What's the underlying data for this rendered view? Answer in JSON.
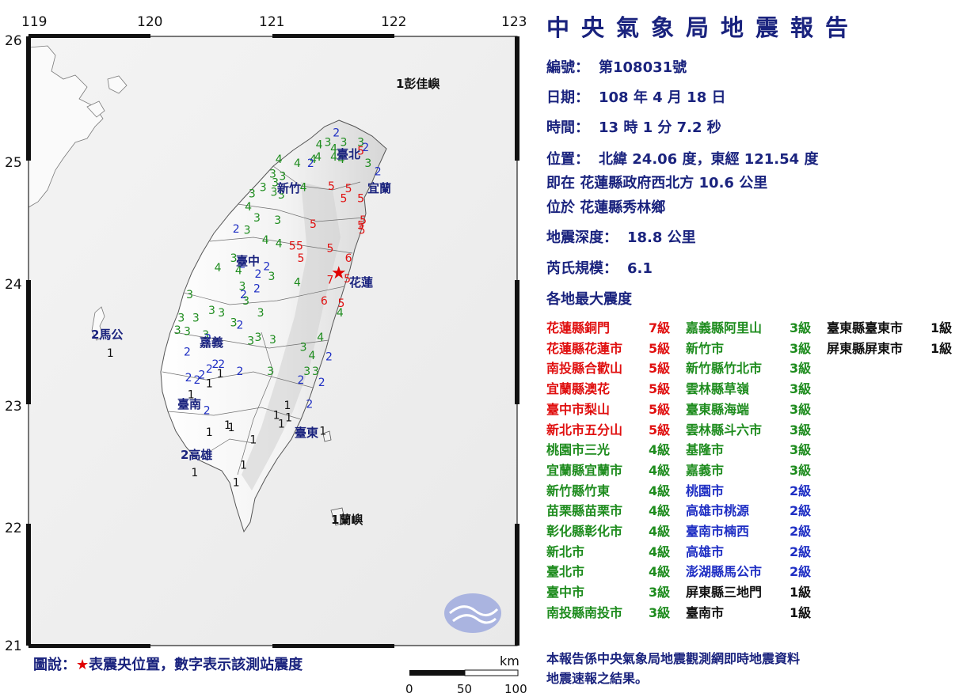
{
  "map": {
    "lon_labels": [
      "119",
      "120",
      "121",
      "122",
      "123"
    ],
    "lat_labels": [
      "26",
      "25",
      "24",
      "23",
      "22",
      "21"
    ],
    "legend_prefix": "圖說：",
    "legend_star": "★",
    "legend_text": "表震央位置，數字表示該測站震度",
    "scale_unit": "km",
    "scale_ticks": [
      "0",
      "50",
      "100"
    ],
    "place_labels": [
      {
        "text": "1彭佳嶼",
        "color": "#111111"
      },
      {
        "text": "臺北",
        "color": "#1a237e"
      },
      {
        "text": "宜蘭",
        "color": "#1a237e"
      },
      {
        "text": "新竹",
        "color": "#1a237e"
      },
      {
        "text": "臺中",
        "color": "#1a237e"
      },
      {
        "text": "花蓮",
        "color": "#1a237e"
      },
      {
        "text": "2馬公",
        "color": "#1a237e"
      },
      {
        "text": "嘉義",
        "color": "#1a237e"
      },
      {
        "text": "臺南",
        "color": "#1a237e"
      },
      {
        "text": "2高雄",
        "color": "#1a237e"
      },
      {
        "text": "臺東",
        "color": "#1a237e"
      },
      {
        "text": "1蘭嶼",
        "color": "#111111"
      }
    ],
    "intensity_colors": {
      "1": "#111111",
      "2": "#1f2fc4",
      "3": "#1e8c1e",
      "4": "#1e8c1e",
      "5": "#e01010",
      "6": "#e01010",
      "7": "#e01010"
    },
    "stations": [
      {
        "v": "2",
        "lon": 121.52,
        "lat": 25.18
      },
      {
        "v": "3",
        "lon": 121.45,
        "lat": 25.1
      },
      {
        "v": "4",
        "lon": 121.38,
        "lat": 25.08
      },
      {
        "v": "4",
        "lon": 121.5,
        "lat": 25.05
      },
      {
        "v": "3",
        "lon": 121.58,
        "lat": 25.1
      },
      {
        "v": "3",
        "lon": 121.72,
        "lat": 25.1
      },
      {
        "v": "2",
        "lon": 121.76,
        "lat": 25.06
      },
      {
        "v": "5",
        "lon": 121.72,
        "lat": 25.03
      },
      {
        "v": "4",
        "lon": 121.5,
        "lat": 24.98
      },
      {
        "v": "4",
        "lon": 121.56,
        "lat": 24.96
      },
      {
        "v": "3",
        "lon": 121.78,
        "lat": 24.93
      },
      {
        "v": "4",
        "lon": 121.37,
        "lat": 24.98
      },
      {
        "v": "4",
        "lon": 121.33,
        "lat": 24.96
      },
      {
        "v": "2",
        "lon": 121.86,
        "lat": 24.86
      },
      {
        "v": "4",
        "lon": 121.05,
        "lat": 24.96
      },
      {
        "v": "4",
        "lon": 121.2,
        "lat": 24.93
      },
      {
        "v": "2",
        "lon": 121.31,
        "lat": 24.93
      },
      {
        "v": "3",
        "lon": 121.0,
        "lat": 24.84
      },
      {
        "v": "3",
        "lon": 121.02,
        "lat": 24.77
      },
      {
        "v": "3",
        "lon": 121.08,
        "lat": 24.82
      },
      {
        "v": "3",
        "lon": 120.92,
        "lat": 24.73
      },
      {
        "v": "3",
        "lon": 121.01,
        "lat": 24.69
      },
      {
        "v": "3",
        "lon": 121.07,
        "lat": 24.67
      },
      {
        "v": "4",
        "lon": 121.25,
        "lat": 24.73
      },
      {
        "v": "3",
        "lon": 120.83,
        "lat": 24.68
      },
      {
        "v": "5",
        "lon": 121.48,
        "lat": 24.74
      },
      {
        "v": "5",
        "lon": 121.62,
        "lat": 24.72
      },
      {
        "v": "5",
        "lon": 121.58,
        "lat": 24.64
      },
      {
        "v": "5",
        "lon": 121.72,
        "lat": 24.64
      },
      {
        "v": "4",
        "lon": 120.8,
        "lat": 24.57
      },
      {
        "v": "3",
        "lon": 120.87,
        "lat": 24.48
      },
      {
        "v": "3",
        "lon": 121.04,
        "lat": 24.46
      },
      {
        "v": "2",
        "lon": 120.7,
        "lat": 24.39
      },
      {
        "v": "3",
        "lon": 120.79,
        "lat": 24.38
      },
      {
        "v": "5",
        "lon": 121.33,
        "lat": 24.43
      },
      {
        "v": "5",
        "lon": 121.74,
        "lat": 24.46
      },
      {
        "v": "5",
        "lon": 121.72,
        "lat": 24.42
      },
      {
        "v": "5",
        "lon": 121.73,
        "lat": 24.38
      },
      {
        "v": "5",
        "lon": 121.16,
        "lat": 24.25
      },
      {
        "v": "5",
        "lon": 121.22,
        "lat": 24.25
      },
      {
        "v": "4",
        "lon": 120.94,
        "lat": 24.3
      },
      {
        "v": "4",
        "lon": 121.05,
        "lat": 24.27
      },
      {
        "v": "5",
        "lon": 121.47,
        "lat": 24.23
      },
      {
        "v": "5",
        "lon": 121.23,
        "lat": 24.15
      },
      {
        "v": "6",
        "lon": 121.62,
        "lat": 24.15
      },
      {
        "v": "3",
        "lon": 120.68,
        "lat": 24.15
      },
      {
        "v": "2",
        "lon": 120.75,
        "lat": 24.1
      },
      {
        "v": "2",
        "lon": 120.95,
        "lat": 24.08
      },
      {
        "v": "4",
        "lon": 120.55,
        "lat": 24.07
      },
      {
        "v": "4",
        "lon": 120.72,
        "lat": 24.05
      },
      {
        "v": "2",
        "lon": 120.88,
        "lat": 24.02
      },
      {
        "v": "3",
        "lon": 120.99,
        "lat": 24.0
      },
      {
        "v": "7",
        "lon": 121.47,
        "lat": 23.97
      },
      {
        "v": "5",
        "lon": 121.61,
        "lat": 23.98
      },
      {
        "v": "4",
        "lon": 121.2,
        "lat": 23.95
      },
      {
        "v": "3",
        "lon": 120.75,
        "lat": 23.92
      },
      {
        "v": "2",
        "lon": 120.87,
        "lat": 23.9
      },
      {
        "v": "3",
        "lon": 120.32,
        "lat": 23.85
      },
      {
        "v": "2",
        "lon": 120.76,
        "lat": 23.85
      },
      {
        "v": "3",
        "lon": 120.78,
        "lat": 23.8
      },
      {
        "v": "6",
        "lon": 121.42,
        "lat": 23.8
      },
      {
        "v": "5",
        "lon": 121.56,
        "lat": 23.78
      },
      {
        "v": "3",
        "lon": 120.5,
        "lat": 23.72
      },
      {
        "v": "3",
        "lon": 120.58,
        "lat": 23.7
      },
      {
        "v": "3",
        "lon": 120.9,
        "lat": 23.7
      },
      {
        "v": "4",
        "lon": 121.55,
        "lat": 23.7
      },
      {
        "v": "3",
        "lon": 120.25,
        "lat": 23.66
      },
      {
        "v": "3",
        "lon": 120.37,
        "lat": 23.66
      },
      {
        "v": "3",
        "lon": 120.68,
        "lat": 23.62
      },
      {
        "v": "2",
        "lon": 120.73,
        "lat": 23.6
      },
      {
        "v": "3",
        "lon": 120.22,
        "lat": 23.56
      },
      {
        "v": "3",
        "lon": 120.3,
        "lat": 23.55
      },
      {
        "v": "3",
        "lon": 120.45,
        "lat": 23.52
      },
      {
        "v": "2",
        "lon": 120.47,
        "lat": 23.49
      },
      {
        "v": "3",
        "lon": 120.88,
        "lat": 23.5
      },
      {
        "v": "3",
        "lon": 121.0,
        "lat": 23.48
      },
      {
        "v": "4",
        "lon": 121.39,
        "lat": 23.5
      },
      {
        "v": "3",
        "lon": 120.82,
        "lat": 23.47
      },
      {
        "v": "2",
        "lon": 120.3,
        "lat": 23.38
      },
      {
        "v": "3",
        "lon": 121.25,
        "lat": 23.42
      },
      {
        "v": "4",
        "lon": 121.32,
        "lat": 23.35
      },
      {
        "v": "2",
        "lon": 121.46,
        "lat": 23.34
      },
      {
        "v": "2",
        "lon": 120.53,
        "lat": 23.28
      },
      {
        "v": "2",
        "lon": 120.58,
        "lat": 23.28
      },
      {
        "v": "2",
        "lon": 120.48,
        "lat": 23.24
      },
      {
        "v": "1",
        "lon": 120.57,
        "lat": 23.2
      },
      {
        "v": "2",
        "lon": 120.73,
        "lat": 23.22
      },
      {
        "v": "3",
        "lon": 120.98,
        "lat": 23.22
      },
      {
        "v": "3",
        "lon": 121.28,
        "lat": 23.22
      },
      {
        "v": "3",
        "lon": 121.35,
        "lat": 23.22
      },
      {
        "v": "2",
        "lon": 120.42,
        "lat": 23.19
      },
      {
        "v": "2",
        "lon": 120.31,
        "lat": 23.17
      },
      {
        "v": "2",
        "lon": 120.38,
        "lat": 23.15
      },
      {
        "v": "1",
        "lon": 120.48,
        "lat": 23.12
      },
      {
        "v": "2",
        "lon": 121.23,
        "lat": 23.15
      },
      {
        "v": "2",
        "lon": 121.4,
        "lat": 23.13
      },
      {
        "v": "1",
        "lon": 120.33,
        "lat": 23.03
      },
      {
        "v": "2",
        "lon": 120.46,
        "lat": 22.9
      },
      {
        "v": "1",
        "lon": 121.12,
        "lat": 22.94
      },
      {
        "v": "1",
        "lon": 121.03,
        "lat": 22.86
      },
      {
        "v": "1",
        "lon": 121.13,
        "lat": 22.84
      },
      {
        "v": "2",
        "lon": 121.3,
        "lat": 22.95
      },
      {
        "v": "1",
        "lon": 120.63,
        "lat": 22.78
      },
      {
        "v": "1",
        "lon": 120.66,
        "lat": 22.76
      },
      {
        "v": "1",
        "lon": 121.07,
        "lat": 22.79
      },
      {
        "v": "1",
        "lon": 120.48,
        "lat": 22.72
      },
      {
        "v": "1",
        "lon": 121.41,
        "lat": 22.73
      },
      {
        "v": "1",
        "lon": 120.84,
        "lat": 22.66
      },
      {
        "v": "1",
        "lon": 120.76,
        "lat": 22.45
      },
      {
        "v": "1",
        "lon": 120.7,
        "lat": 22.31
      },
      {
        "v": "1",
        "lon": 120.36,
        "lat": 22.39
      },
      {
        "v": "1",
        "lon": 119.67,
        "lat": 23.37
      }
    ],
    "epicenter": {
      "lon": 121.54,
      "lat": 24.06
    }
  },
  "report": {
    "title": "中央氣象局地震報告",
    "number_label": "編號：",
    "number_value": "第108031號",
    "date_label": "日期：",
    "date_value": "108 年 4 月 18 日",
    "time_label": "時間：",
    "time_value": "13 時 1 分 7.2 秒",
    "position_label": "位置：",
    "position_value": "北緯 24.06 度，東經 121.54 度",
    "relative_value": "即在 花蓮縣政府西北方 10.6 公里",
    "located_value": "位於 花蓮縣秀林鄉",
    "depth_label": "地震深度：",
    "depth_value": "18.8 公里",
    "magnitude_label": "芮氏規模：",
    "magnitude_value": "6.1",
    "intensity_heading": "各地最大震度",
    "columns": [
      [
        {
          "name": "花蓮縣銅門",
          "level": "7級",
          "color": "#e01010"
        },
        {
          "name": "花蓮縣花蓮市",
          "level": "5級",
          "color": "#e01010"
        },
        {
          "name": "南投縣合歡山",
          "level": "5級",
          "color": "#e01010"
        },
        {
          "name": "宜蘭縣澳花",
          "level": "5級",
          "color": "#e01010"
        },
        {
          "name": "臺中市梨山",
          "level": "5級",
          "color": "#e01010"
        },
        {
          "name": "新北市五分山",
          "level": "5級",
          "color": "#e01010"
        },
        {
          "name": "桃園市三光",
          "level": "4級",
          "color": "#1e8c1e"
        },
        {
          "name": "宜蘭縣宜蘭市",
          "level": "4級",
          "color": "#1e8c1e"
        },
        {
          "name": "新竹縣竹東",
          "level": "4級",
          "color": "#1e8c1e"
        },
        {
          "name": "苗栗縣苗栗市",
          "level": "4級",
          "color": "#1e8c1e"
        },
        {
          "name": "彰化縣彰化市",
          "level": "4級",
          "color": "#1e8c1e"
        },
        {
          "name": "新北市",
          "level": "4級",
          "color": "#1e8c1e"
        },
        {
          "name": "臺北市",
          "level": "4級",
          "color": "#1e8c1e"
        },
        {
          "name": "臺中市",
          "level": "3級",
          "color": "#1e8c1e"
        },
        {
          "name": "南投縣南投市",
          "level": "3級",
          "color": "#1e8c1e"
        }
      ],
      [
        {
          "name": "嘉義縣阿里山",
          "level": "3級",
          "color": "#1e8c1e"
        },
        {
          "name": "新竹市",
          "level": "3級",
          "color": "#1e8c1e"
        },
        {
          "name": "新竹縣竹北市",
          "level": "3級",
          "color": "#1e8c1e"
        },
        {
          "name": "雲林縣草嶺",
          "level": "3級",
          "color": "#1e8c1e"
        },
        {
          "name": "臺東縣海端",
          "level": "3級",
          "color": "#1e8c1e"
        },
        {
          "name": "雲林縣斗六市",
          "level": "3級",
          "color": "#1e8c1e"
        },
        {
          "name": "基隆市",
          "level": "3級",
          "color": "#1e8c1e"
        },
        {
          "name": "嘉義市",
          "level": "3級",
          "color": "#1e8c1e"
        },
        {
          "name": "桃園市",
          "level": "2級",
          "color": "#1f2fc4"
        },
        {
          "name": "高雄市桃源",
          "level": "2級",
          "color": "#1f2fc4"
        },
        {
          "name": "臺南市楠西",
          "level": "2級",
          "color": "#1f2fc4"
        },
        {
          "name": "高雄市",
          "level": "2級",
          "color": "#1f2fc4"
        },
        {
          "name": "澎湖縣馬公市",
          "level": "2級",
          "color": "#1f2fc4"
        },
        {
          "name": "屏東縣三地門",
          "level": "1級",
          "color": "#111111"
        },
        {
          "name": "臺南市",
          "level": "1級",
          "color": "#111111"
        }
      ],
      [
        {
          "name": "臺東縣臺東市",
          "level": "1級",
          "color": "#111111"
        },
        {
          "name": "屏東縣屏東市",
          "level": "1級",
          "color": "#111111"
        }
      ]
    ],
    "footer_line1": "本報告係中央氣象局地震觀測網即時地震資料",
    "footer_line2": "地震速報之結果。"
  }
}
